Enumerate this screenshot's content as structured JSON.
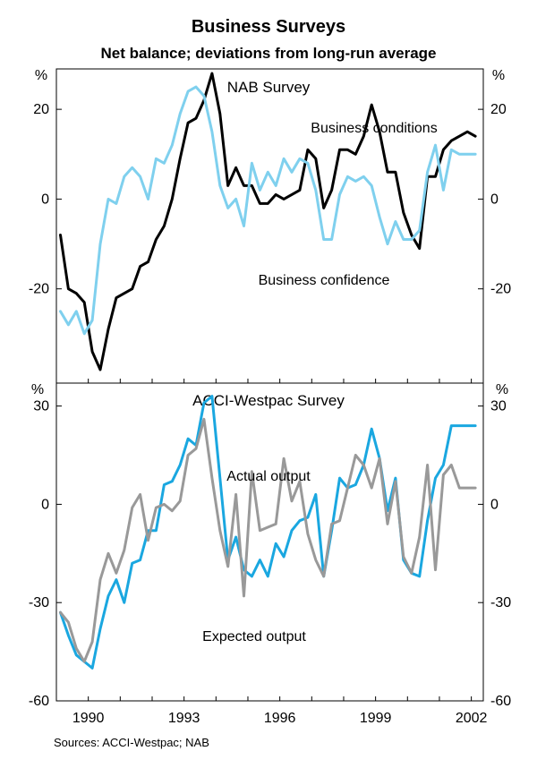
{
  "chart_data": [
    {
      "type": "line",
      "panel": "top",
      "title": "NAB Survey",
      "ylabel_left": "%",
      "ylabel_right": "%",
      "ylim": [
        -41,
        29
      ],
      "yticks": [
        -20,
        0,
        20
      ],
      "ytick_labels": [
        "-20",
        "0",
        "20"
      ],
      "series": [
        {
          "name": "Business conditions",
          "color": "#000000",
          "x": [
            1989.125,
            1989.375,
            1989.625,
            1989.875,
            1990.125,
            1990.375,
            1990.625,
            1990.875,
            1991.125,
            1991.375,
            1991.625,
            1991.875,
            1992.125,
            1992.375,
            1992.625,
            1992.875,
            1993.125,
            1993.375,
            1993.625,
            1993.875,
            1994.125,
            1994.375,
            1994.625,
            1994.875,
            1995.125,
            1995.375,
            1995.625,
            1995.875,
            1996.125,
            1996.375,
            1996.625,
            1996.875,
            1997.125,
            1997.375,
            1997.625,
            1997.875,
            1998.125,
            1998.375,
            1998.625,
            1998.875,
            1999.125,
            1999.375,
            1999.625,
            1999.875,
            2000.125,
            2000.375,
            2000.625,
            2000.875,
            2001.125,
            2001.375,
            2001.625,
            2001.875,
            2002.125
          ],
          "values": [
            -8,
            -20,
            -21,
            -23,
            -34,
            -38,
            -29,
            -22,
            -21,
            -20,
            -15,
            -14,
            -9,
            -6,
            0,
            9,
            17,
            18,
            22,
            28,
            19,
            3,
            7,
            3,
            3,
            -1,
            -1,
            1,
            0,
            1,
            2,
            11,
            9,
            -2,
            2,
            11,
            11,
            10,
            14,
            21,
            15,
            6,
            6,
            -3,
            -8,
            -11,
            5,
            5,
            11,
            13,
            14,
            15,
            14
          ],
          "label": "Business conditions"
        },
        {
          "name": "Business confidence",
          "color": "#7fd0ee",
          "x": [
            1989.125,
            1989.375,
            1989.625,
            1989.875,
            1990.125,
            1990.375,
            1990.625,
            1990.875,
            1991.125,
            1991.375,
            1991.625,
            1991.875,
            1992.125,
            1992.375,
            1992.625,
            1992.875,
            1993.125,
            1993.375,
            1993.625,
            1993.875,
            1994.125,
            1994.375,
            1994.625,
            1994.875,
            1995.125,
            1995.375,
            1995.625,
            1995.875,
            1996.125,
            1996.375,
            1996.625,
            1996.875,
            1997.125,
            1997.375,
            1997.625,
            1997.875,
            1998.125,
            1998.375,
            1998.625,
            1998.875,
            1999.125,
            1999.375,
            1999.625,
            1999.875,
            2000.125,
            2000.375,
            2000.625,
            2000.875,
            2001.125,
            2001.375,
            2001.625,
            2001.875,
            2002.125
          ],
          "values": [
            -25,
            -28,
            -25,
            -30,
            -27,
            -10,
            0,
            -1,
            5,
            7,
            5,
            0,
            9,
            8,
            12,
            19,
            24,
            25,
            23,
            15,
            3,
            -2,
            0,
            -6,
            8,
            2,
            6,
            3,
            9,
            6,
            9,
            8,
            2,
            -9,
            -9,
            1,
            5,
            4,
            5,
            3,
            -4,
            -10,
            -5,
            -9,
            -9,
            -7,
            6,
            12,
            2,
            11,
            10,
            10,
            10
          ],
          "label": "Business confidence"
        }
      ]
    },
    {
      "type": "line",
      "panel": "bottom",
      "title": "ACCI-Westpac Survey",
      "ylabel_left": "%",
      "ylabel_right": "%",
      "ylim": [
        -60,
        37
      ],
      "yticks": [
        -60,
        -30,
        0,
        30
      ],
      "ytick_labels": [
        "-60",
        "-30",
        "0",
        "30"
      ],
      "series": [
        {
          "name": "Actual output",
          "color": "#1aa7e0",
          "x": [
            1989.125,
            1989.375,
            1989.625,
            1989.875,
            1990.125,
            1990.375,
            1990.625,
            1990.875,
            1991.125,
            1991.375,
            1991.625,
            1991.875,
            1992.125,
            1992.375,
            1992.625,
            1992.875,
            1993.125,
            1993.375,
            1993.625,
            1993.875,
            1994.125,
            1994.375,
            1994.625,
            1994.875,
            1995.125,
            1995.375,
            1995.625,
            1995.875,
            1996.125,
            1996.375,
            1996.625,
            1996.875,
            1997.125,
            1997.375,
            1997.625,
            1997.875,
            1998.125,
            1998.375,
            1998.625,
            1998.875,
            1999.125,
            1999.375,
            1999.625,
            1999.875,
            2000.125,
            2000.375,
            2000.625,
            2000.875,
            2001.125,
            2001.375,
            2001.625,
            2001.875,
            2002.125
          ],
          "values": [
            -33,
            -40,
            -46,
            -48,
            -50,
            -38,
            -28,
            -23,
            -30,
            -18,
            -17,
            -8,
            -8,
            6,
            7,
            12,
            20,
            18,
            31,
            33,
            8,
            -17,
            -10,
            -20,
            -22,
            -17,
            -22,
            -12,
            -16,
            -8,
            -5,
            -4,
            3,
            -22,
            -8,
            8,
            5,
            6,
            12,
            23,
            14,
            -2,
            8,
            -17,
            -21,
            -22,
            -5,
            8,
            12,
            24,
            24,
            24,
            24
          ],
          "label": "Actual output"
        },
        {
          "name": "Expected output",
          "color": "#999999",
          "x": [
            1989.125,
            1989.375,
            1989.625,
            1989.875,
            1990.125,
            1990.375,
            1990.625,
            1990.875,
            1991.125,
            1991.375,
            1991.625,
            1991.875,
            1992.125,
            1992.375,
            1992.625,
            1992.875,
            1993.125,
            1993.375,
            1993.625,
            1993.875,
            1994.125,
            1994.375,
            1994.625,
            1994.875,
            1995.125,
            1995.375,
            1995.625,
            1995.875,
            1996.125,
            1996.375,
            1996.625,
            1996.875,
            1997.125,
            1997.375,
            1997.625,
            1997.875,
            1998.125,
            1998.375,
            1998.625,
            1998.875,
            1999.125,
            1999.375,
            1999.625,
            1999.875,
            2000.125,
            2000.375,
            2000.625,
            2000.875,
            2001.125,
            2001.375,
            2001.625,
            2001.875,
            2002.125
          ],
          "values": [
            -33,
            -36,
            -44,
            -48,
            -42,
            -23,
            -15,
            -21,
            -14,
            -1,
            3,
            -11,
            -1,
            0,
            -2,
            1,
            15,
            17,
            26,
            8,
            -8,
            -19,
            3,
            -28,
            10,
            -8,
            -7,
            -6,
            14,
            1,
            7,
            -9,
            -17,
            -22,
            -6,
            -5,
            5,
            15,
            12,
            5,
            14,
            -6,
            7,
            -16,
            -21,
            -10,
            12,
            -20,
            9,
            12,
            5,
            5,
            5
          ],
          "label": "Expected output"
        }
      ]
    }
  ],
  "title": "Business Surveys",
  "subtitle": "Net balance; deviations from long-run average",
  "xlim": [
    1989,
    2002.375
  ],
  "xticks": [
    1990,
    1993,
    1996,
    1999,
    2002
  ],
  "xtick_labels": [
    "1990",
    "1993",
    "1996",
    "1999",
    "2002"
  ],
  "source": "Sources: ACCI-Westpac; NAB"
}
